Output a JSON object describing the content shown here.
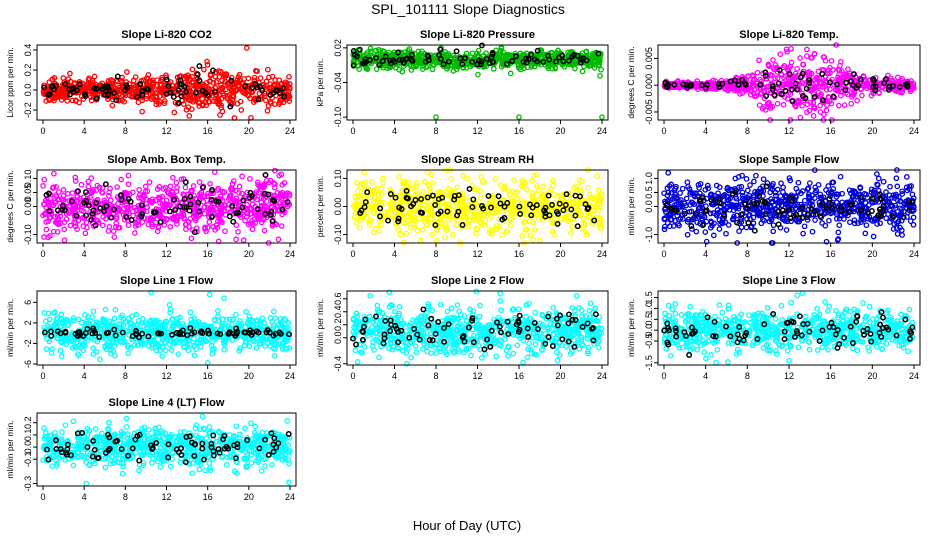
{
  "figure": {
    "title": "SPL_101111  Slope Diagnostics",
    "xlabel": "Hour of Day (UTC)"
  },
  "chart_data": [
    {
      "type": "scatter",
      "title": "Slope Li-820 CO2",
      "ylabel": "Licor ppm per min.",
      "color": "#ff0000",
      "xlim": [
        0,
        24
      ],
      "ylim": [
        -0.3,
        0.45
      ],
      "xticks": [
        "0",
        "4",
        "8",
        "12",
        "16",
        "20",
        "24"
      ],
      "yticks": [
        {
          "v": -0.2,
          "label": "-0.2"
        },
        {
          "v": 0.0,
          "label": "0.0"
        },
        {
          "v": 0.2,
          "label": "0.2"
        },
        {
          "v": 0.4,
          "label": "0.4"
        }
      ],
      "series_points": 720,
      "black_points": 80,
      "spread": [
        [
          0,
          0.05
        ],
        [
          4,
          0.05
        ],
        [
          8,
          0.06
        ],
        [
          12,
          0.07
        ],
        [
          14,
          0.09
        ],
        [
          16,
          0.12
        ],
        [
          18,
          0.1
        ],
        [
          20,
          0.08
        ],
        [
          24,
          0.07
        ]
      ],
      "center": 0.0,
      "outliers": [
        [
          19.8,
          0.42
        ],
        [
          18.6,
          -0.28
        ],
        [
          17.2,
          -0.25
        ]
      ]
    },
    {
      "type": "scatter",
      "title": "Slope Li-820 Pressure",
      "ylabel": "kPa per min.",
      "color": "#00bb00",
      "xlim": [
        0,
        24
      ],
      "ylim": [
        -0.105,
        0.025
      ],
      "xticks": [
        "0",
        "4",
        "8",
        "12",
        "16",
        "20",
        "24"
      ],
      "yticks": [
        {
          "v": -0.1,
          "label": "-0.10"
        },
        {
          "v": -0.04,
          "label": "-0.04"
        },
        {
          "v": 0.02,
          "label": "0.02"
        }
      ],
      "series_points": 720,
      "black_points": 80,
      "spread": [
        [
          0,
          0.008
        ],
        [
          24,
          0.008
        ]
      ],
      "center": 0.0,
      "outliers": [
        [
          8,
          -0.1
        ],
        [
          16,
          -0.1
        ],
        [
          24,
          -0.1
        ]
      ]
    },
    {
      "type": "scatter",
      "title": "Slope Li-820 Temp.",
      "ylabel": "degrees C per min.",
      "color": "#ff00ff",
      "xlim": [
        0,
        24
      ],
      "ylim": [
        -0.0065,
        0.0075
      ],
      "xticks": [
        "0",
        "4",
        "8",
        "12",
        "16",
        "20",
        "24"
      ],
      "yticks": [
        {
          "v": -0.005,
          "label": "-0.005"
        },
        {
          "v": 0.0,
          "label": "0.000"
        },
        {
          "v": 0.005,
          "label": "0.005"
        }
      ],
      "series_points": 720,
      "black_points": 80,
      "spread": [
        [
          0,
          0.0003
        ],
        [
          6,
          0.0004
        ],
        [
          8,
          0.001
        ],
        [
          10,
          0.0025
        ],
        [
          12,
          0.003
        ],
        [
          14,
          0.0032
        ],
        [
          16,
          0.0025
        ],
        [
          18,
          0.0015
        ],
        [
          20,
          0.0008
        ],
        [
          24,
          0.0005
        ]
      ],
      "center": 0.0,
      "outliers": [
        [
          12.2,
          0.0068
        ],
        [
          10.4,
          -0.004
        ]
      ]
    },
    {
      "type": "scatter",
      "title": "Slope Amb. Box Temp.",
      "ylabel": "degrees C per min.",
      "color": "#ff00ff",
      "xlim": [
        0,
        24
      ],
      "ylim": [
        -0.13,
        0.13
      ],
      "xticks": [
        "0",
        "4",
        "8",
        "12",
        "16",
        "20",
        "24"
      ],
      "yticks": [
        {
          "v": -0.1,
          "label": "-0.10"
        },
        {
          "v": 0.0,
          "label": "0.00"
        },
        {
          "v": 0.05,
          "label": "0.05"
        },
        {
          "v": 0.1,
          "label": "0.10"
        }
      ],
      "series_points": 720,
      "black_points": 80,
      "spread": [
        [
          0,
          0.045
        ],
        [
          24,
          0.05
        ]
      ],
      "center": 0.0,
      "outliers": [
        [
          0.5,
          -0.11
        ],
        [
          2.1,
          -0.12
        ],
        [
          8.3,
          0.11
        ],
        [
          19.5,
          -0.12
        ]
      ]
    },
    {
      "type": "scatter",
      "title": "Slope Gas Stream RH",
      "ylabel": "percent per min.",
      "color": "#ffff00",
      "xlim": [
        0,
        24
      ],
      "ylim": [
        -0.13,
        0.13
      ],
      "xticks": [
        "0",
        "4",
        "8",
        "12",
        "16",
        "20",
        "24"
      ],
      "yticks": [
        {
          "v": -0.1,
          "label": "-0.10"
        },
        {
          "v": 0.0,
          "label": "0.00"
        },
        {
          "v": 0.1,
          "label": "0.10"
        }
      ],
      "series_points": 720,
      "black_points": 80,
      "spread": [
        [
          0,
          0.045
        ],
        [
          24,
          0.045
        ]
      ],
      "center": 0.0,
      "outliers": [
        [
          18.0,
          -0.12
        ],
        [
          17.4,
          0.11
        ],
        [
          9.6,
          -0.1
        ]
      ]
    },
    {
      "type": "scatter",
      "title": "Slope Sample Flow",
      "ylabel": "ml/min per min.",
      "color": "#0000dd",
      "xlim": [
        0,
        24
      ],
      "ylim": [
        -1.3,
        1.3
      ],
      "xticks": [
        "0",
        "4",
        "8",
        "12",
        "16",
        "20",
        "24"
      ],
      "yticks": [
        {
          "v": -1.0,
          "label": "-1.0"
        },
        {
          "v": 0.0,
          "label": "0.0"
        },
        {
          "v": 0.5,
          "label": "0.5"
        },
        {
          "v": 1.0,
          "label": "1.0"
        }
      ],
      "series_points": 720,
      "black_points": 80,
      "spread": [
        [
          0,
          0.45
        ],
        [
          24,
          0.45
        ]
      ],
      "center": 0.0,
      "outliers": [
        [
          0.4,
          1.2
        ],
        [
          4.1,
          -1.25
        ],
        [
          7.5,
          1.1
        ]
      ]
    },
    {
      "type": "scatter",
      "title": "Slope Line 1 Flow",
      "ylabel": "ml/min per min.",
      "color": "#00ffff",
      "xlim": [
        0,
        24
      ],
      "ylim": [
        -6.2,
        8.2
      ],
      "xticks": [
        "0",
        "4",
        "8",
        "12",
        "16",
        "20",
        "24"
      ],
      "yticks": [
        {
          "v": -6,
          "label": "-6"
        },
        {
          "v": -2,
          "label": "-2"
        },
        {
          "v": 2,
          "label": "2"
        },
        {
          "v": 6,
          "label": "6"
        }
      ],
      "series_points": 720,
      "black_points": 80,
      "spread": [
        [
          0,
          2.0
        ],
        [
          24,
          1.6
        ]
      ],
      "center": 0.0,
      "black_spread": 0.3,
      "outliers": [
        [
          10.5,
          7.9
        ],
        [
          16.2,
          7.5
        ],
        [
          17.6,
          6.8
        ],
        [
          16.0,
          -5.8
        ]
      ]
    },
    {
      "type": "scatter",
      "title": "Slope Line 2 Flow",
      "ylabel": "ml/min per min.",
      "color": "#00ffff",
      "xlim": [
        0,
        24
      ],
      "ylim": [
        -0.42,
        0.72
      ],
      "xticks": [
        "0",
        "4",
        "8",
        "12",
        "16",
        "20",
        "24"
      ],
      "yticks": [
        {
          "v": -0.4,
          "label": "-0.4"
        },
        {
          "v": 0.0,
          "label": "0.0"
        },
        {
          "v": 0.2,
          "label": "0.2"
        },
        {
          "v": 0.4,
          "label": "0.4"
        },
        {
          "v": 0.6,
          "label": "0.6"
        }
      ],
      "series_points": 720,
      "black_points": 80,
      "spread": [
        [
          0,
          0.18
        ],
        [
          24,
          0.18
        ]
      ],
      "center": 0.1,
      "outliers": [
        [
          3.5,
          0.7
        ],
        [
          5.2,
          -0.4
        ],
        [
          14.2,
          0.68
        ],
        [
          16.4,
          -0.38
        ]
      ]
    },
    {
      "type": "scatter",
      "title": "Slope Line 3 Flow",
      "ylabel": "ml/min per min.",
      "color": "#00ffff",
      "xlim": [
        0,
        24
      ],
      "ylim": [
        -1.6,
        1.8
      ],
      "xticks": [
        "0",
        "4",
        "8",
        "12",
        "16",
        "20",
        "24"
      ],
      "yticks": [
        {
          "v": -1.5,
          "label": "-1.5"
        },
        {
          "v": -0.5,
          "label": "-0.5"
        },
        {
          "v": 0.0,
          "label": "0.0"
        },
        {
          "v": 0.5,
          "label": "0.5"
        },
        {
          "v": 1.0,
          "label": "1.0"
        },
        {
          "v": 1.5,
          "label": "1.5"
        }
      ],
      "series_points": 720,
      "black_points": 80,
      "spread": [
        [
          0,
          0.45
        ],
        [
          24,
          0.45
        ]
      ],
      "center": 0.0,
      "outliers": [
        [
          12.8,
          1.6
        ],
        [
          13.3,
          1.7
        ],
        [
          5.0,
          -1.5
        ],
        [
          12.0,
          -1.4
        ]
      ]
    },
    {
      "type": "scatter",
      "title": "Slope Line 4 (LT) Flow",
      "ylabel": "ml/min per min.",
      "color": "#00ffff",
      "xlim": [
        0,
        24
      ],
      "ylim": [
        -0.32,
        0.28
      ],
      "xticks": [
        "0",
        "4",
        "8",
        "12",
        "16",
        "20",
        "24"
      ],
      "yticks": [
        {
          "v": -0.3,
          "label": "-0.3"
        },
        {
          "v": -0.1,
          "label": "-0.1"
        },
        {
          "v": 0.0,
          "label": "0.0"
        },
        {
          "v": 0.1,
          "label": "0.1"
        },
        {
          "v": 0.2,
          "label": "0.2"
        }
      ],
      "series_points": 720,
      "black_points": 80,
      "spread": [
        [
          0,
          0.08
        ],
        [
          24,
          0.08
        ]
      ],
      "center": 0.0,
      "outliers": [
        [
          4.2,
          -0.3
        ],
        [
          15.5,
          0.25
        ],
        [
          6.4,
          0.2
        ]
      ]
    }
  ]
}
